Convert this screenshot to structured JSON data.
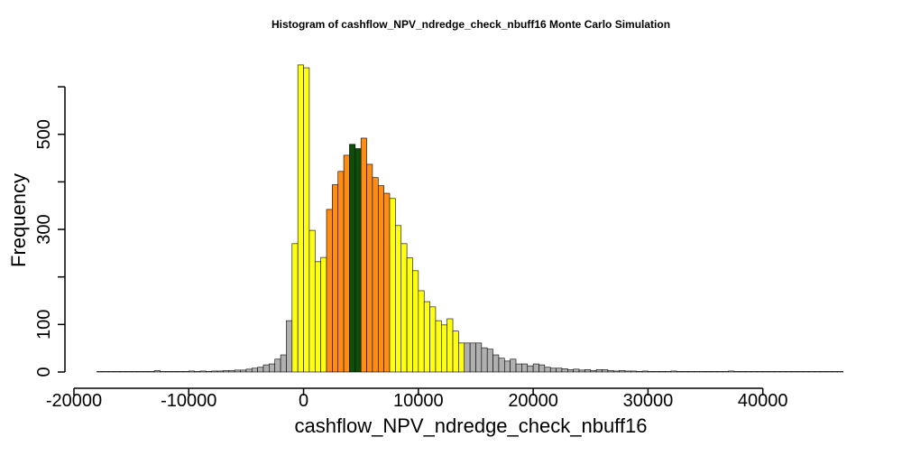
{
  "chart_data": {
    "type": "histogram",
    "title": "Histogram of  cashflow_NPV_ndredge_check_nbuff16  Monte Carlo Simulation",
    "xlabel": "cashflow_NPV_ndredge_check_nbuff16",
    "ylabel": "Frequency",
    "bins": [
      -18000,
      -17500,
      -17000,
      -16500,
      -16000,
      -15500,
      -15000,
      -14500,
      -14000,
      -13500,
      -13000,
      -12500,
      -12000,
      -11500,
      -11000,
      -10500,
      -10000,
      -9500,
      -9000,
      -8500,
      -8000,
      -7500,
      -7000,
      -6500,
      -6000,
      -5500,
      -5000,
      -4500,
      -4000,
      -3500,
      -3000,
      -2500,
      -2000,
      -1500,
      -1000,
      -500,
      0,
      500,
      1000,
      1500,
      2000,
      2500,
      3000,
      3500,
      4000,
      4500,
      5000,
      5500,
      6000,
      6500,
      7000,
      7500,
      8000,
      8500,
      9000,
      9500,
      10000,
      10500,
      11000,
      11500,
      12000,
      12500,
      13000,
      13500,
      14000,
      14500,
      15000,
      15500,
      16000,
      16500,
      17000,
      17500,
      18000,
      18500,
      19000,
      19500,
      20000,
      20500,
      21000,
      21500,
      22000,
      22500,
      23000,
      23500,
      24000,
      24500,
      25000,
      25500,
      26000,
      26500,
      27000,
      27500,
      28000,
      28500,
      29000,
      29500,
      30000,
      30500,
      31000,
      31500,
      32000,
      32500,
      33000,
      33500,
      34000,
      34500,
      35000,
      35500,
      36000,
      36500,
      37000,
      37500,
      38000,
      38500,
      39000,
      39500,
      40000,
      40500,
      41000,
      41500,
      42000,
      42500,
      43000,
      43500,
      44000,
      44500,
      45000,
      45500,
      46000,
      46500,
      47000
    ],
    "counts": [
      1,
      1,
      1,
      1,
      1,
      1,
      1,
      1,
      1,
      1,
      3,
      1,
      1,
      1,
      1,
      1,
      2,
      1,
      2,
      1,
      2,
      2,
      3,
      3,
      4,
      4,
      6,
      8,
      10,
      15,
      17,
      27,
      36,
      108,
      270,
      646,
      640,
      298,
      232,
      241,
      342,
      394,
      422,
      456,
      479,
      470,
      492,
      437,
      409,
      392,
      376,
      365,
      308,
      270,
      240,
      213,
      171,
      148,
      137,
      108,
      99,
      112,
      86,
      61,
      61,
      61,
      61,
      51,
      48,
      36,
      29,
      23,
      27,
      17,
      17,
      13,
      17,
      15,
      10,
      8,
      8,
      7,
      5,
      6,
      4,
      5,
      3,
      5,
      5,
      3,
      2,
      3,
      2,
      2,
      1,
      2,
      1,
      1,
      1,
      1,
      2,
      1,
      1,
      1,
      1,
      1,
      1,
      1,
      1,
      1,
      2,
      1,
      1,
      1,
      1,
      1,
      1,
      1,
      1,
      1,
      1,
      1,
      1,
      1,
      1,
      1,
      1,
      1,
      1,
      1
    ],
    "color_bands": [
      {
        "from": -1000,
        "to": 2000,
        "color": "#ffff14"
      },
      {
        "from": 2000,
        "to": 4000,
        "color": "#ff8c14"
      },
      {
        "from": 4000,
        "to": 5000,
        "color": "#0f4d0a"
      },
      {
        "from": 5000,
        "to": 7500,
        "color": "#ff8c14"
      },
      {
        "from": 7500,
        "to": 14000,
        "color": "#ffff14"
      }
    ],
    "default_color": "#b0b0b0",
    "xlim": [
      -22000,
      50000
    ],
    "ylim": [
      -20,
      680
    ],
    "xticks": [
      -20000,
      -10000,
      0,
      10000,
      20000,
      30000,
      40000
    ],
    "yticks": [
      0,
      100,
      300,
      500
    ],
    "y_unlabeled_ticks": [
      200,
      400,
      600
    ]
  }
}
